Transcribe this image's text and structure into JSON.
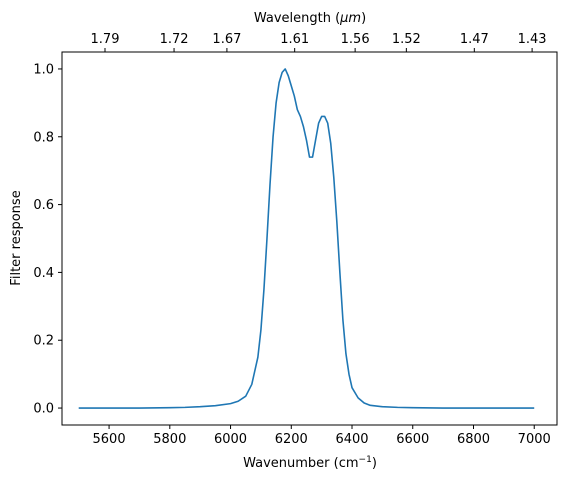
{
  "chart_data": {
    "type": "line",
    "xlabel_base": "Wavenumber (cm",
    "xlabel_sup": "−1",
    "xlabel_tail": ")",
    "ylabel": "Filter response",
    "top_label_prefix": "Wavelength (",
    "top_label_unit": "μm",
    "top_label_suffix": ")",
    "xlim": [
      5445,
      7075
    ],
    "ylim": [
      -0.05,
      1.05
    ],
    "x_ticks": [
      5600,
      5800,
      6000,
      6200,
      6400,
      6600,
      6800,
      7000
    ],
    "x_tick_labels": [
      "5600",
      "5800",
      "6000",
      "6200",
      "6400",
      "6600",
      "6800",
      "7000"
    ],
    "y_ticks": [
      0.0,
      0.2,
      0.4,
      0.6,
      0.8,
      1.0
    ],
    "y_tick_labels": [
      "0.0",
      "0.2",
      "0.4",
      "0.6",
      "0.8",
      "1.0"
    ],
    "top_ticks": [
      1.79,
      1.72,
      1.67,
      1.61,
      1.56,
      1.52,
      1.47,
      1.43
    ],
    "top_tick_labels": [
      "1.79",
      "1.72",
      "1.67",
      "1.61",
      "1.56",
      "1.52",
      "1.47",
      "1.43"
    ],
    "line_color": "#1f77b4",
    "series": [
      {
        "x": [
          5500,
          5600,
          5700,
          5800,
          5850,
          5900,
          5950,
          6000,
          6025,
          6050,
          6070,
          6090,
          6100,
          6110,
          6120,
          6130,
          6140,
          6150,
          6160,
          6170,
          6180,
          6190,
          6200,
          6210,
          6220,
          6230,
          6240,
          6250,
          6260,
          6270,
          6280,
          6290,
          6300,
          6310,
          6320,
          6330,
          6340,
          6350,
          6360,
          6370,
          6380,
          6390,
          6400,
          6420,
          6440,
          6460,
          6500,
          6550,
          6600,
          6700,
          6800,
          6900,
          7000
        ],
        "y": [
          0.0,
          0.0,
          0.0,
          0.001,
          0.002,
          0.004,
          0.007,
          0.013,
          0.02,
          0.035,
          0.07,
          0.15,
          0.23,
          0.35,
          0.5,
          0.66,
          0.8,
          0.9,
          0.96,
          0.99,
          1.0,
          0.98,
          0.95,
          0.92,
          0.88,
          0.86,
          0.83,
          0.79,
          0.74,
          0.74,
          0.79,
          0.84,
          0.86,
          0.86,
          0.84,
          0.78,
          0.68,
          0.55,
          0.4,
          0.26,
          0.16,
          0.1,
          0.06,
          0.03,
          0.015,
          0.008,
          0.004,
          0.002,
          0.001,
          0.0,
          0.0,
          0.0,
          0.0
        ]
      }
    ]
  }
}
